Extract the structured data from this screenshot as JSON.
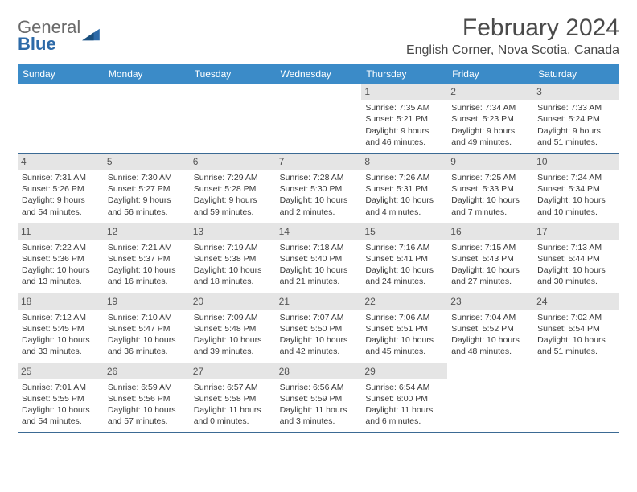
{
  "logo": {
    "text1": "General",
    "text2": "Blue"
  },
  "title": "February 2024",
  "location": "English Corner, Nova Scotia, Canada",
  "colors": {
    "header_bg": "#3b8bc8",
    "header_text": "#ffffff",
    "daynum_bg": "#e5e5e5",
    "border": "#3b6a94",
    "body_text": "#3a3a3a",
    "logo_gray": "#6a6a6a",
    "logo_blue": "#2d6aa8"
  },
  "dow": [
    "Sunday",
    "Monday",
    "Tuesday",
    "Wednesday",
    "Thursday",
    "Friday",
    "Saturday"
  ],
  "weeks": [
    [
      {
        "n": "",
        "sr": "",
        "ss": "",
        "d1": "",
        "d2": ""
      },
      {
        "n": "",
        "sr": "",
        "ss": "",
        "d1": "",
        "d2": ""
      },
      {
        "n": "",
        "sr": "",
        "ss": "",
        "d1": "",
        "d2": ""
      },
      {
        "n": "",
        "sr": "",
        "ss": "",
        "d1": "",
        "d2": ""
      },
      {
        "n": "1",
        "sr": "Sunrise: 7:35 AM",
        "ss": "Sunset: 5:21 PM",
        "d1": "Daylight: 9 hours",
        "d2": "and 46 minutes."
      },
      {
        "n": "2",
        "sr": "Sunrise: 7:34 AM",
        "ss": "Sunset: 5:23 PM",
        "d1": "Daylight: 9 hours",
        "d2": "and 49 minutes."
      },
      {
        "n": "3",
        "sr": "Sunrise: 7:33 AM",
        "ss": "Sunset: 5:24 PM",
        "d1": "Daylight: 9 hours",
        "d2": "and 51 minutes."
      }
    ],
    [
      {
        "n": "4",
        "sr": "Sunrise: 7:31 AM",
        "ss": "Sunset: 5:26 PM",
        "d1": "Daylight: 9 hours",
        "d2": "and 54 minutes."
      },
      {
        "n": "5",
        "sr": "Sunrise: 7:30 AM",
        "ss": "Sunset: 5:27 PM",
        "d1": "Daylight: 9 hours",
        "d2": "and 56 minutes."
      },
      {
        "n": "6",
        "sr": "Sunrise: 7:29 AM",
        "ss": "Sunset: 5:28 PM",
        "d1": "Daylight: 9 hours",
        "d2": "and 59 minutes."
      },
      {
        "n": "7",
        "sr": "Sunrise: 7:28 AM",
        "ss": "Sunset: 5:30 PM",
        "d1": "Daylight: 10 hours",
        "d2": "and 2 minutes."
      },
      {
        "n": "8",
        "sr": "Sunrise: 7:26 AM",
        "ss": "Sunset: 5:31 PM",
        "d1": "Daylight: 10 hours",
        "d2": "and 4 minutes."
      },
      {
        "n": "9",
        "sr": "Sunrise: 7:25 AM",
        "ss": "Sunset: 5:33 PM",
        "d1": "Daylight: 10 hours",
        "d2": "and 7 minutes."
      },
      {
        "n": "10",
        "sr": "Sunrise: 7:24 AM",
        "ss": "Sunset: 5:34 PM",
        "d1": "Daylight: 10 hours",
        "d2": "and 10 minutes."
      }
    ],
    [
      {
        "n": "11",
        "sr": "Sunrise: 7:22 AM",
        "ss": "Sunset: 5:36 PM",
        "d1": "Daylight: 10 hours",
        "d2": "and 13 minutes."
      },
      {
        "n": "12",
        "sr": "Sunrise: 7:21 AM",
        "ss": "Sunset: 5:37 PM",
        "d1": "Daylight: 10 hours",
        "d2": "and 16 minutes."
      },
      {
        "n": "13",
        "sr": "Sunrise: 7:19 AM",
        "ss": "Sunset: 5:38 PM",
        "d1": "Daylight: 10 hours",
        "d2": "and 18 minutes."
      },
      {
        "n": "14",
        "sr": "Sunrise: 7:18 AM",
        "ss": "Sunset: 5:40 PM",
        "d1": "Daylight: 10 hours",
        "d2": "and 21 minutes."
      },
      {
        "n": "15",
        "sr": "Sunrise: 7:16 AM",
        "ss": "Sunset: 5:41 PM",
        "d1": "Daylight: 10 hours",
        "d2": "and 24 minutes."
      },
      {
        "n": "16",
        "sr": "Sunrise: 7:15 AM",
        "ss": "Sunset: 5:43 PM",
        "d1": "Daylight: 10 hours",
        "d2": "and 27 minutes."
      },
      {
        "n": "17",
        "sr": "Sunrise: 7:13 AM",
        "ss": "Sunset: 5:44 PM",
        "d1": "Daylight: 10 hours",
        "d2": "and 30 minutes."
      }
    ],
    [
      {
        "n": "18",
        "sr": "Sunrise: 7:12 AM",
        "ss": "Sunset: 5:45 PM",
        "d1": "Daylight: 10 hours",
        "d2": "and 33 minutes."
      },
      {
        "n": "19",
        "sr": "Sunrise: 7:10 AM",
        "ss": "Sunset: 5:47 PM",
        "d1": "Daylight: 10 hours",
        "d2": "and 36 minutes."
      },
      {
        "n": "20",
        "sr": "Sunrise: 7:09 AM",
        "ss": "Sunset: 5:48 PM",
        "d1": "Daylight: 10 hours",
        "d2": "and 39 minutes."
      },
      {
        "n": "21",
        "sr": "Sunrise: 7:07 AM",
        "ss": "Sunset: 5:50 PM",
        "d1": "Daylight: 10 hours",
        "d2": "and 42 minutes."
      },
      {
        "n": "22",
        "sr": "Sunrise: 7:06 AM",
        "ss": "Sunset: 5:51 PM",
        "d1": "Daylight: 10 hours",
        "d2": "and 45 minutes."
      },
      {
        "n": "23",
        "sr": "Sunrise: 7:04 AM",
        "ss": "Sunset: 5:52 PM",
        "d1": "Daylight: 10 hours",
        "d2": "and 48 minutes."
      },
      {
        "n": "24",
        "sr": "Sunrise: 7:02 AM",
        "ss": "Sunset: 5:54 PM",
        "d1": "Daylight: 10 hours",
        "d2": "and 51 minutes."
      }
    ],
    [
      {
        "n": "25",
        "sr": "Sunrise: 7:01 AM",
        "ss": "Sunset: 5:55 PM",
        "d1": "Daylight: 10 hours",
        "d2": "and 54 minutes."
      },
      {
        "n": "26",
        "sr": "Sunrise: 6:59 AM",
        "ss": "Sunset: 5:56 PM",
        "d1": "Daylight: 10 hours",
        "d2": "and 57 minutes."
      },
      {
        "n": "27",
        "sr": "Sunrise: 6:57 AM",
        "ss": "Sunset: 5:58 PM",
        "d1": "Daylight: 11 hours",
        "d2": "and 0 minutes."
      },
      {
        "n": "28",
        "sr": "Sunrise: 6:56 AM",
        "ss": "Sunset: 5:59 PM",
        "d1": "Daylight: 11 hours",
        "d2": "and 3 minutes."
      },
      {
        "n": "29",
        "sr": "Sunrise: 6:54 AM",
        "ss": "Sunset: 6:00 PM",
        "d1": "Daylight: 11 hours",
        "d2": "and 6 minutes."
      },
      {
        "n": "",
        "sr": "",
        "ss": "",
        "d1": "",
        "d2": ""
      },
      {
        "n": "",
        "sr": "",
        "ss": "",
        "d1": "",
        "d2": ""
      }
    ]
  ]
}
